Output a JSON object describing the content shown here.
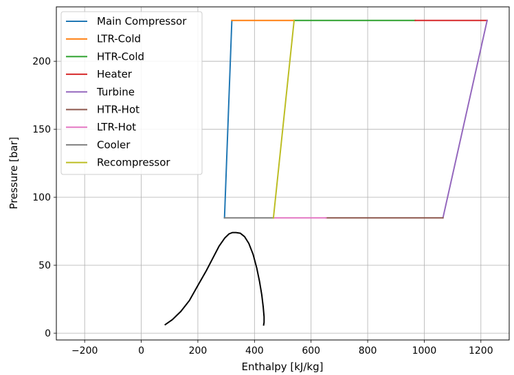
{
  "chart_data": {
    "type": "line",
    "title": "",
    "xlabel": "Enthalpy [kJ/kg]",
    "ylabel": "Pressure [bar]",
    "xlim": [
      -300,
      1300
    ],
    "ylim": [
      -5,
      240
    ],
    "x_ticks": [
      -200,
      0,
      200,
      400,
      600,
      800,
      1000,
      1200
    ],
    "x_tick_labels": [
      "−200",
      "0",
      "200",
      "400",
      "600",
      "800",
      "1000",
      "1200"
    ],
    "y_ticks": [
      0,
      50,
      100,
      150,
      200
    ],
    "y_tick_labels": [
      "0",
      "50",
      "100",
      "150",
      "200"
    ],
    "grid": true,
    "legend_position": "top-left",
    "series": [
      {
        "name": "Main Compressor",
        "color": "#1f77b4",
        "x": [
          294,
          320
        ],
        "y": [
          84.8,
          230
        ]
      },
      {
        "name": "LTR-Cold",
        "color": "#ff7f0e",
        "x": [
          320,
          540
        ],
        "y": [
          230,
          230
        ]
      },
      {
        "name": "HTR-Cold",
        "color": "#2ca02c",
        "x": [
          540,
          968
        ],
        "y": [
          230,
          230
        ]
      },
      {
        "name": "Heater",
        "color": "#d62728",
        "x": [
          968,
          1222
        ],
        "y": [
          230,
          230
        ]
      },
      {
        "name": "Turbine",
        "color": "#9467bd",
        "x": [
          1222,
          1066
        ],
        "y": [
          230,
          84.8
        ]
      },
      {
        "name": "HTR-Hot",
        "color": "#8c564b",
        "x": [
          1066,
          653
        ],
        "y": [
          84.8,
          84.8
        ]
      },
      {
        "name": "LTR-Hot",
        "color": "#e377c2",
        "x": [
          653,
          467
        ],
        "y": [
          84.8,
          84.8
        ]
      },
      {
        "name": "Cooler",
        "color": "#7f7f7f",
        "x": [
          467,
          294
        ],
        "y": [
          84.8,
          84.8
        ]
      },
      {
        "name": "Recompressor",
        "color": "#bcbd22",
        "x": [
          467,
          540
        ],
        "y": [
          84.8,
          230
        ]
      }
    ],
    "saturation_dome": {
      "color": "#000000",
      "x": [
        83,
        110,
        140,
        170,
        200,
        230,
        255,
        275,
        295,
        310,
        322,
        335,
        350,
        365,
        380,
        395,
        408,
        418,
        426,
        431,
        434,
        434,
        432
      ],
      "y": [
        6,
        10,
        16,
        24,
        35,
        46,
        56,
        64,
        70,
        73,
        74,
        74,
        73.5,
        71,
        66,
        58,
        48,
        38,
        28,
        19,
        12,
        8,
        5.5
      ]
    }
  }
}
